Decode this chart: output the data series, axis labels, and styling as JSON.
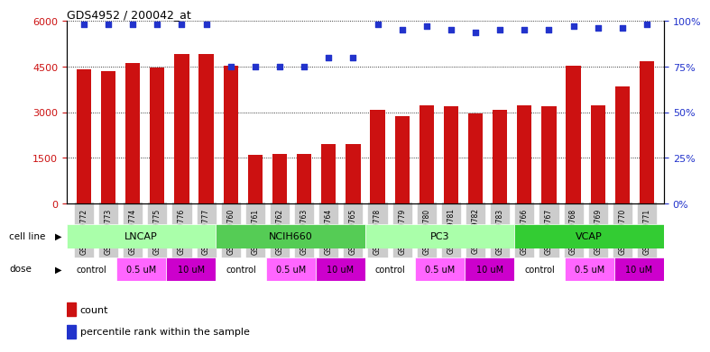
{
  "title": "GDS4952 / 200042_at",
  "samples": [
    "GSM1359772",
    "GSM1359773",
    "GSM1359774",
    "GSM1359775",
    "GSM1359776",
    "GSM1359777",
    "GSM1359760",
    "GSM1359761",
    "GSM1359762",
    "GSM1359763",
    "GSM1359764",
    "GSM1359765",
    "GSM1359778",
    "GSM1359779",
    "GSM1359780",
    "GSM1359781",
    "GSM1359782",
    "GSM1359783",
    "GSM1359766",
    "GSM1359767",
    "GSM1359768",
    "GSM1359769",
    "GSM1359770",
    "GSM1359771"
  ],
  "counts": [
    4400,
    4350,
    4620,
    4480,
    4900,
    4900,
    4520,
    1580,
    1620,
    1620,
    1950,
    1950,
    3080,
    2880,
    3210,
    3180,
    2960,
    3080,
    3220,
    3200,
    4520,
    3230,
    3850,
    4680
  ],
  "percentiles": [
    98,
    98,
    98,
    98,
    98,
    98,
    75,
    75,
    75,
    75,
    80,
    80,
    98,
    95,
    97,
    95,
    94,
    95,
    95,
    95,
    97,
    96,
    96,
    98
  ],
  "cell_lines": [
    {
      "label": "LNCAP",
      "start": 0,
      "end": 6,
      "color": "#aaffaa"
    },
    {
      "label": "NCIH660",
      "start": 6,
      "end": 12,
      "color": "#55cc55"
    },
    {
      "label": "PC3",
      "start": 12,
      "end": 18,
      "color": "#aaffaa"
    },
    {
      "label": "VCAP",
      "start": 18,
      "end": 24,
      "color": "#33cc33"
    }
  ],
  "doses": [
    {
      "label": "control",
      "start": 0,
      "end": 2,
      "color": "#ffffff"
    },
    {
      "label": "0.5 uM",
      "start": 2,
      "end": 4,
      "color": "#ff66ff"
    },
    {
      "label": "10 uM",
      "start": 4,
      "end": 6,
      "color": "#cc00cc"
    },
    {
      "label": "control",
      "start": 6,
      "end": 8,
      "color": "#ffffff"
    },
    {
      "label": "0.5 uM",
      "start": 8,
      "end": 10,
      "color": "#ff66ff"
    },
    {
      "label": "10 uM",
      "start": 10,
      "end": 12,
      "color": "#cc00cc"
    },
    {
      "label": "control",
      "start": 12,
      "end": 14,
      "color": "#ffffff"
    },
    {
      "label": "0.5 uM",
      "start": 14,
      "end": 16,
      "color": "#ff66ff"
    },
    {
      "label": "10 uM",
      "start": 16,
      "end": 18,
      "color": "#cc00cc"
    },
    {
      "label": "control",
      "start": 18,
      "end": 20,
      "color": "#ffffff"
    },
    {
      "label": "0.5 uM",
      "start": 20,
      "end": 22,
      "color": "#ff66ff"
    },
    {
      "label": "10 uM",
      "start": 22,
      "end": 24,
      "color": "#cc00cc"
    }
  ],
  "bar_color": "#cc1111",
  "dot_color": "#2233cc",
  "ylim_left": [
    0,
    6000
  ],
  "yticks_left": [
    0,
    1500,
    3000,
    4500,
    6000
  ],
  "ylim_right": [
    0,
    100
  ],
  "yticks_right": [
    0,
    25,
    50,
    75,
    100
  ],
  "left_tick_color": "#cc1111",
  "right_tick_color": "#2233cc"
}
